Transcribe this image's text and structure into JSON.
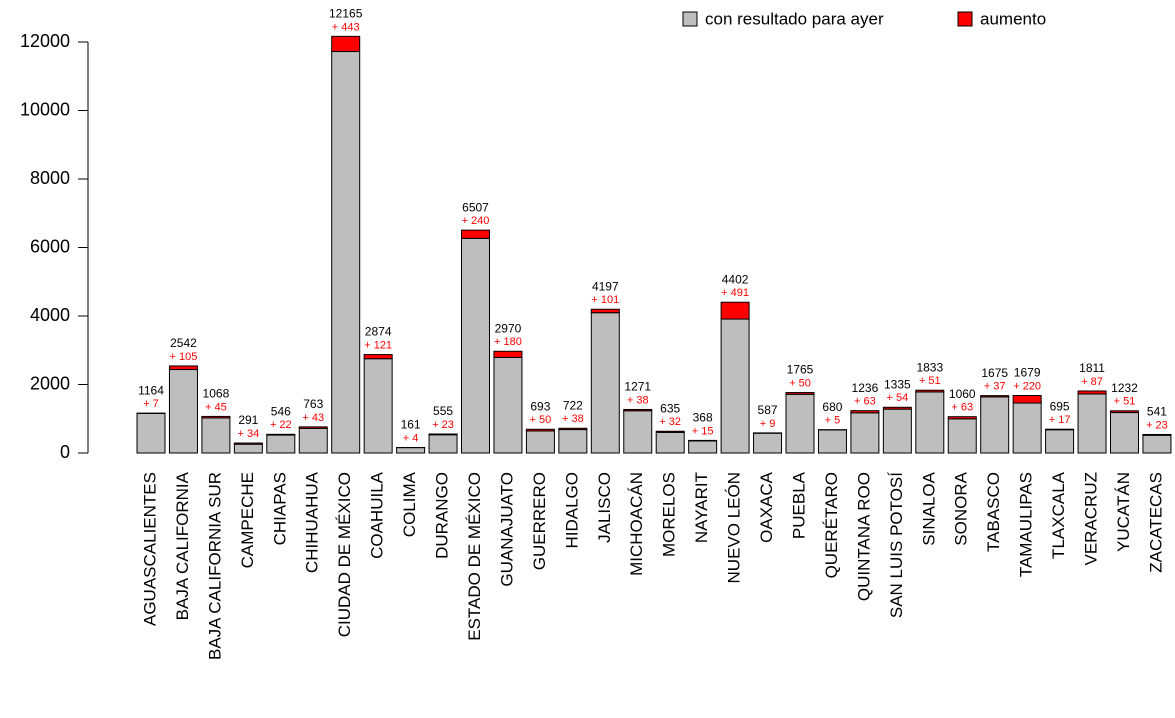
{
  "chart_data": {
    "type": "bar",
    "stacked": true,
    "categories": [
      "AGUASCALIENTES",
      "BAJA CALIFORNIA",
      "BAJA CALIFORNIA SUR",
      "CAMPECHE",
      "CHIAPAS",
      "CHIHUAHUA",
      "CIUDAD DE MÉXICO",
      "COAHUILA",
      "COLIMA",
      "DURANGO",
      "ESTADO DE MÉXICO",
      "GUANAJUATO",
      "GUERRERO",
      "HIDALGO",
      "JALISCO",
      "MICHOACÁN",
      "MORELOS",
      "NAYARIT",
      "NUEVO LEÓN",
      "OAXACA",
      "PUEBLA",
      "QUERÉTARO",
      "QUINTANA ROO",
      "SAN LUIS POTOSÍ",
      "SINALOA",
      "SONORA",
      "TABASCO",
      "TAMAULIPAS",
      "TLAXCALA",
      "VERACRUZ",
      "YUCATÁN",
      "ZACATECAS"
    ],
    "series": [
      {
        "name": "con resultado para ayer",
        "color": "#bebebe",
        "values": [
          1157,
          2437,
          1023,
          257,
          524,
          720,
          11722,
          2753,
          157,
          532,
          6267,
          2790,
          643,
          684,
          4096,
          1233,
          603,
          353,
          3911,
          578,
          1715,
          675,
          1173,
          1281,
          1782,
          997,
          1638,
          1459,
          678,
          1724,
          1181,
          518
        ]
      },
      {
        "name": "aumento",
        "color": "#ff0000",
        "values": [
          7,
          105,
          45,
          34,
          22,
          43,
          443,
          121,
          4,
          23,
          240,
          180,
          50,
          38,
          101,
          38,
          32,
          15,
          491,
          9,
          50,
          5,
          63,
          54,
          51,
          63,
          37,
          220,
          17,
          87,
          51,
          23
        ],
        "value_labels": [
          "+ 7",
          "+ 105",
          "+ 45",
          "+ 34",
          "+ 22",
          "+ 43",
          "+ 443",
          "+ 121",
          "+ 4",
          "+ 23",
          "+ 240",
          "+ 180",
          "+ 50",
          "+ 38",
          "+ 101",
          "+ 38",
          "+ 32",
          "+ 15",
          "+ 491",
          "+ 9",
          "+ 50",
          "+ 5",
          "+ 63",
          "+ 54",
          "+ 51",
          "+ 63",
          "+ 37",
          "+ 220",
          "+ 17",
          "+ 87",
          "+ 51",
          "+ 23"
        ]
      }
    ],
    "totals": [
      1164,
      2542,
      1068,
      291,
      546,
      763,
      12165,
      2874,
      161,
      555,
      6507,
      2970,
      693,
      722,
      4197,
      1271,
      635,
      368,
      4402,
      587,
      1765,
      680,
      1236,
      1335,
      1833,
      1060,
      1675,
      1679,
      695,
      1811,
      1232,
      541
    ],
    "ylim": [
      0,
      12000
    ],
    "yticks": [
      0,
      2000,
      4000,
      6000,
      8000,
      10000,
      12000
    ],
    "legend": "top-right"
  }
}
